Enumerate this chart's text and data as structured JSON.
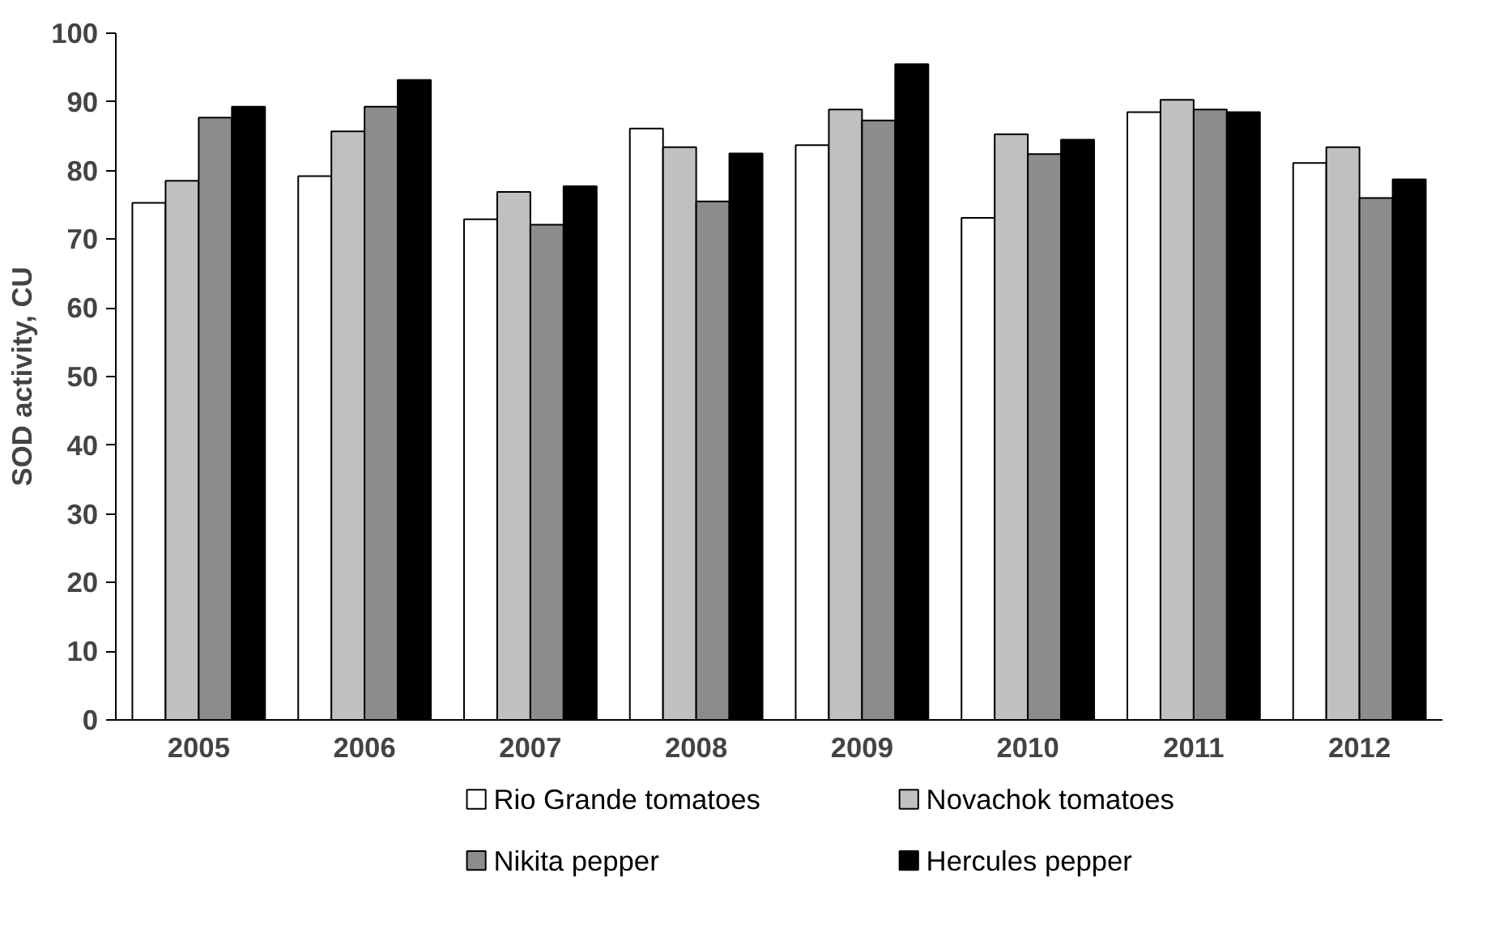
{
  "chart_data": {
    "type": "bar",
    "ylabel": "SOD activity, CU",
    "categories": [
      "2005",
      "2006",
      "2007",
      "2008",
      "2009",
      "2010",
      "2011",
      "2012"
    ],
    "series": [
      {
        "name": "Rio Grande tomatoes",
        "color": "#ffffff",
        "values": [
          75.3,
          79.2,
          72.9,
          86.1,
          83.7,
          73.1,
          88.5,
          81.1
        ]
      },
      {
        "name": "Novachok tomatoes",
        "color": "#c0c0c0",
        "values": [
          78.5,
          85.7,
          76.9,
          83.4,
          88.9,
          85.3,
          90.3,
          83.4
        ]
      },
      {
        "name": "Nikita pepper",
        "color": "#8c8c8c",
        "values": [
          87.7,
          89.3,
          72.1,
          75.5,
          87.3,
          82.4,
          88.9,
          76.0
        ]
      },
      {
        "name": "Hercules pepper",
        "color": "#000000",
        "values": [
          89.3,
          93.2,
          77.7,
          82.5,
          95.5,
          84.5,
          88.5,
          78.7
        ]
      }
    ],
    "ylim": [
      0,
      100
    ],
    "yticks": [
      0,
      10,
      20,
      30,
      40,
      50,
      60,
      70,
      80,
      90,
      100
    ],
    "grid": false,
    "legend": "bottom"
  }
}
